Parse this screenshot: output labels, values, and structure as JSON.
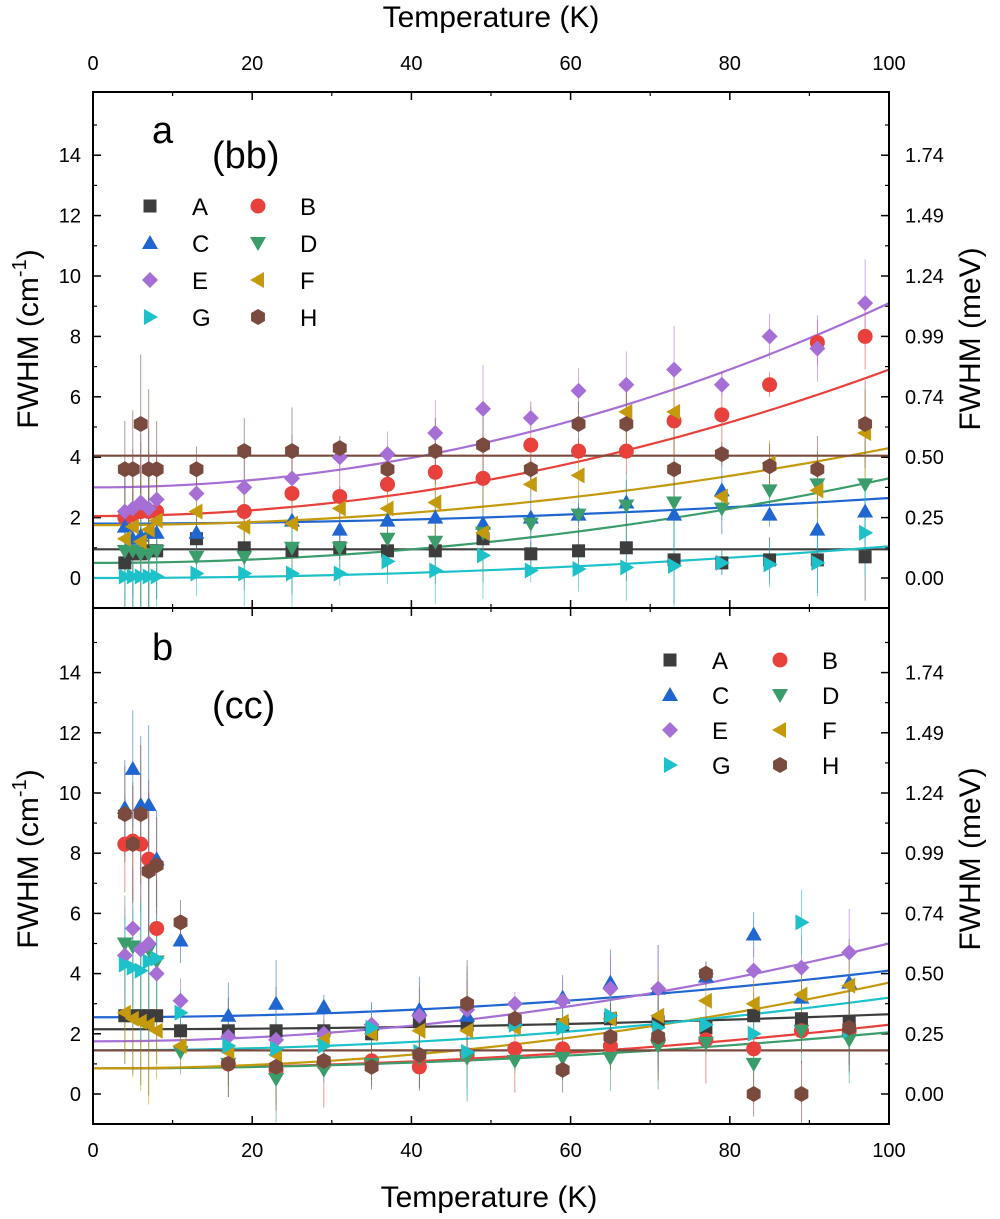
{
  "chart_data": [
    {
      "type": "scatter",
      "panel_label": "a",
      "polarization": "(bb)",
      "xlabel": "Temperature (K)",
      "ylabel": "FWHM (cm-1)",
      "ylabel_unit": "cm",
      "ylabel_sup": "-1",
      "y2label": "FWHM (meV)",
      "xlim": [
        0,
        100
      ],
      "ylim": [
        -1,
        16
      ],
      "xticks": [
        "0",
        "20",
        "40",
        "60",
        "80",
        "100"
      ],
      "yticks": [
        "0",
        "2",
        "4",
        "6",
        "8",
        "10",
        "12",
        "14"
      ],
      "y2ticks": [
        "0.00",
        "0.25",
        "0.50",
        "0.74",
        "0.99",
        "1.24",
        "1.49",
        "1.74"
      ],
      "legend_position": "top-left",
      "series": [
        {
          "name": "A",
          "marker": "square",
          "color": "#3d3d3d",
          "x": [
            4,
            5,
            6,
            7,
            8,
            13,
            19,
            25,
            31,
            37,
            43,
            49,
            55,
            61,
            67,
            73,
            79,
            85,
            91,
            97
          ],
          "y": [
            0.5,
            0.8,
            0.8,
            0.9,
            0.9,
            1.3,
            1.0,
            0.9,
            1.0,
            0.9,
            0.9,
            1.3,
            0.8,
            0.9,
            1.0,
            0.6,
            0.5,
            0.6,
            0.6,
            0.7
          ],
          "fit": [
            0.95,
            0.95
          ]
        },
        {
          "name": "B",
          "marker": "circle",
          "color": "#e8403a",
          "x": [
            4,
            5,
            6,
            7,
            8,
            19,
            25,
            31,
            37,
            43,
            49,
            55,
            61,
            67,
            73,
            79,
            85,
            91,
            97
          ],
          "y": [
            2.0,
            2.1,
            2.2,
            2.2,
            2.2,
            2.2,
            2.8,
            2.7,
            3.1,
            3.5,
            3.3,
            4.4,
            4.2,
            4.2,
            5.2,
            5.4,
            6.4,
            7.8,
            8.0
          ],
          "fit": [
            2.05,
            6.9
          ]
        },
        {
          "name": "C",
          "marker": "triangle-up",
          "color": "#1f66d1",
          "x": [
            4,
            5,
            6,
            7,
            8,
            13,
            25,
            31,
            37,
            43,
            49,
            55,
            61,
            67,
            73,
            79,
            85,
            91,
            97
          ],
          "y": [
            1.7,
            1.3,
            1.4,
            1.5,
            1.5,
            1.5,
            1.9,
            1.6,
            1.9,
            2.0,
            1.8,
            2.0,
            2.1,
            2.5,
            2.1,
            2.9,
            2.1,
            1.6,
            2.2
          ],
          "fit": [
            1.8,
            2.65
          ]
        },
        {
          "name": "D",
          "marker": "triangle-down",
          "color": "#3a9d6b",
          "x": [
            4,
            5,
            6,
            7,
            8,
            13,
            19,
            25,
            31,
            37,
            43,
            49,
            55,
            61,
            67,
            73,
            79,
            85,
            91,
            97
          ],
          "y": [
            0.9,
            0.9,
            0.8,
            0.8,
            0.9,
            0.7,
            0.7,
            1.0,
            1.0,
            1.3,
            1.2,
            1.5,
            1.8,
            2.1,
            2.4,
            2.5,
            2.3,
            2.9,
            3.1,
            3.1
          ],
          "fit": [
            0.5,
            3.3
          ]
        },
        {
          "name": "E",
          "marker": "diamond",
          "color": "#a66fd6",
          "x": [
            4,
            5,
            6,
            7,
            8,
            13,
            19,
            25,
            31,
            37,
            43,
            49,
            55,
            61,
            67,
            73,
            79,
            85,
            91,
            97
          ],
          "y": [
            2.2,
            2.3,
            2.5,
            2.3,
            2.6,
            2.8,
            3.0,
            3.3,
            4.0,
            4.1,
            4.8,
            5.6,
            5.3,
            6.2,
            6.4,
            6.9,
            6.4,
            8.0,
            7.6,
            9.1
          ],
          "fit": [
            3.0,
            9.1
          ]
        },
        {
          "name": "F",
          "marker": "triangle-left",
          "color": "#c49a0c",
          "x": [
            4,
            5,
            6,
            7,
            8,
            13,
            19,
            25,
            31,
            37,
            43,
            49,
            55,
            61,
            67,
            73,
            79,
            85,
            91,
            97
          ],
          "y": [
            1.3,
            1.7,
            1.2,
            1.6,
            1.9,
            2.2,
            1.7,
            1.8,
            2.3,
            2.3,
            2.5,
            1.5,
            3.1,
            3.4,
            5.5,
            5.5,
            2.7,
            3.8,
            2.9,
            4.8
          ],
          "fit": [
            1.75,
            4.3
          ]
        },
        {
          "name": "G",
          "marker": "triangle-right",
          "color": "#1cc1c9",
          "x": [
            4,
            5,
            6,
            7,
            8,
            13,
            19,
            25,
            31,
            37,
            43,
            49,
            55,
            61,
            67,
            73,
            79,
            85,
            91,
            97
          ],
          "y": [
            0.05,
            0.05,
            0.05,
            0.05,
            0.05,
            0.15,
            0.15,
            0.15,
            0.15,
            0.55,
            0.25,
            0.75,
            0.25,
            0.3,
            0.35,
            0.4,
            0.5,
            0.45,
            0.5,
            1.5
          ],
          "fit": [
            0.0,
            1.05
          ]
        },
        {
          "name": "H",
          "marker": "hexagon",
          "color": "#7b4a3e",
          "x": [
            4,
            5,
            6,
            7,
            8,
            13,
            19,
            25,
            31,
            37,
            43,
            49,
            55,
            61,
            67,
            73,
            79,
            85,
            91,
            97
          ],
          "y": [
            3.6,
            3.6,
            5.1,
            3.6,
            3.6,
            3.6,
            4.2,
            4.2,
            4.3,
            3.6,
            4.2,
            4.4,
            3.6,
            5.1,
            5.1,
            3.6,
            4.1,
            3.7,
            3.6,
            5.1
          ],
          "fit": [
            4.05,
            4.05
          ]
        }
      ]
    },
    {
      "type": "scatter",
      "panel_label": "b",
      "polarization": "(cc)",
      "xlabel": "Temperature (K)",
      "ylabel": "FWHM (cm-1)",
      "ylabel_unit": "cm",
      "ylabel_sup": "-1",
      "y2label": "FWHM (meV)",
      "xlim": [
        0,
        100
      ],
      "ylim": [
        -1,
        15.5
      ],
      "xticks": [
        "0",
        "20",
        "40",
        "60",
        "80",
        "100"
      ],
      "yticks": [
        "0",
        "2",
        "4",
        "6",
        "8",
        "10",
        "12",
        "14"
      ],
      "y2ticks": [
        "0.00",
        "0.25",
        "0.50",
        "0.74",
        "0.99",
        "1.24",
        "1.49",
        "1.74"
      ],
      "legend_position": "top-right",
      "series": [
        {
          "name": "A",
          "marker": "square",
          "color": "#3d3d3d",
          "x": [
            4,
            5,
            6,
            7,
            8,
            11,
            17,
            23,
            29,
            35,
            41,
            47,
            53,
            59,
            65,
            71,
            77,
            83,
            89,
            95
          ],
          "y": [
            2.6,
            2.6,
            2.6,
            2.6,
            2.6,
            2.1,
            2.1,
            2.1,
            2.1,
            2.0,
            2.4,
            2.3,
            2.4,
            2.3,
            2.5,
            2.4,
            2.2,
            2.6,
            2.5,
            2.4
          ],
          "fit": [
            2.15,
            2.65
          ]
        },
        {
          "name": "B",
          "marker": "circle",
          "color": "#e8403a",
          "x": [
            4,
            5,
            6,
            7,
            8,
            17,
            23,
            29,
            35,
            41,
            47,
            53,
            59,
            65,
            71,
            77,
            83,
            89,
            95
          ],
          "y": [
            8.3,
            8.4,
            8.3,
            7.8,
            5.5,
            1.0,
            0.8,
            1.0,
            1.1,
            0.9,
            1.3,
            1.5,
            1.5,
            1.6,
            1.8,
            1.8,
            1.5,
            2.1,
            2.1
          ],
          "fit": [
            0.85,
            2.3
          ]
        },
        {
          "name": "C",
          "marker": "triangle-up",
          "color": "#1f66d1",
          "x": [
            4,
            5,
            6,
            7,
            8,
            11,
            17,
            23,
            29,
            35,
            41,
            47,
            53,
            59,
            65,
            71,
            77,
            83,
            89,
            95
          ],
          "y": [
            9.5,
            10.8,
            9.6,
            9.6,
            7.8,
            5.1,
            2.6,
            3.0,
            2.9,
            2.3,
            2.8,
            2.6,
            2.5,
            3.2,
            3.7,
            3.5,
            3.9,
            5.3,
            3.2,
            3.7
          ],
          "fit": [
            2.55,
            4.1
          ]
        },
        {
          "name": "D",
          "marker": "triangle-down",
          "color": "#3a9d6b",
          "x": [
            4,
            5,
            6,
            7,
            8,
            11,
            17,
            23,
            29,
            35,
            41,
            47,
            53,
            59,
            65,
            71,
            77,
            83,
            89,
            95
          ],
          "y": [
            5.0,
            4.9,
            4.8,
            4.8,
            4.4,
            1.4,
            1.0,
            0.5,
            0.8,
            1.0,
            1.2,
            1.2,
            1.1,
            1.2,
            1.2,
            1.6,
            1.7,
            1.0,
            2.1,
            1.8
          ],
          "fit": [
            0.85,
            2.05
          ]
        },
        {
          "name": "E",
          "marker": "diamond",
          "color": "#a66fd6",
          "x": [
            4,
            5,
            6,
            7,
            8,
            11,
            17,
            23,
            29,
            35,
            41,
            47,
            53,
            59,
            65,
            71,
            77,
            83,
            89,
            95
          ],
          "y": [
            4.6,
            5.5,
            4.8,
            5.0,
            4.0,
            3.1,
            1.9,
            1.8,
            2.0,
            2.3,
            2.6,
            2.8,
            3.0,
            3.1,
            3.5,
            3.5,
            4.0,
            4.1,
            4.2,
            4.7
          ],
          "fit": [
            1.75,
            5.0
          ]
        },
        {
          "name": "F",
          "marker": "triangle-left",
          "color": "#c49a0c",
          "x": [
            4,
            5,
            6,
            7,
            8,
            11,
            17,
            23,
            29,
            35,
            41,
            47,
            53,
            59,
            65,
            71,
            77,
            83,
            89,
            95
          ],
          "y": [
            2.7,
            2.5,
            2.4,
            2.3,
            2.1,
            1.6,
            1.4,
            1.3,
            1.8,
            2.0,
            2.1,
            2.1,
            2.2,
            2.4,
            2.5,
            2.6,
            3.1,
            3.0,
            3.3,
            3.6
          ],
          "fit": [
            0.85,
            3.7
          ]
        },
        {
          "name": "G",
          "marker": "triangle-right",
          "color": "#1cc1c9",
          "x": [
            4,
            5,
            6,
            7,
            8,
            11,
            17,
            23,
            29,
            35,
            41,
            47,
            53,
            59,
            65,
            71,
            77,
            83,
            89,
            95
          ],
          "y": [
            4.3,
            4.2,
            4.1,
            4.4,
            4.5,
            2.7,
            1.6,
            1.5,
            1.6,
            2.2,
            1.4,
            1.4,
            2.3,
            2.2,
            2.6,
            2.2,
            2.3,
            2.0,
            5.7,
            2.1
          ],
          "fit": [
            1.45,
            3.2
          ]
        },
        {
          "name": "H",
          "marker": "hexagon",
          "color": "#7b4a3e",
          "x": [
            4,
            5,
            6,
            7,
            8,
            11,
            17,
            23,
            29,
            35,
            41,
            47,
            53,
            59,
            65,
            71,
            77,
            83,
            89,
            95
          ],
          "y": [
            9.3,
            8.3,
            9.3,
            7.4,
            7.6,
            5.7,
            1.0,
            0.9,
            1.1,
            0.9,
            1.3,
            3.0,
            2.5,
            0.8,
            1.9,
            1.9,
            4.0,
            0.0,
            0.0,
            2.2
          ],
          "fit": [
            1.45,
            1.45
          ]
        }
      ]
    }
  ]
}
